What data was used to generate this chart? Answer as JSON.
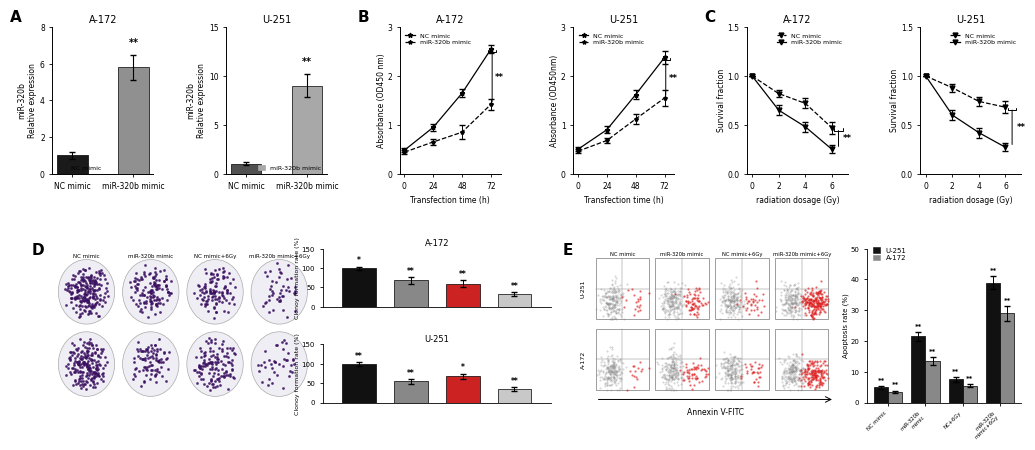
{
  "panel_A": {
    "title_left": "A-172",
    "title_right": "U-251",
    "ylabel": "miR-320b\nRelative expression",
    "categories": [
      "NC mimic",
      "miR-320b mimic"
    ],
    "A172_values": [
      1.0,
      5.8
    ],
    "A172_errors": [
      0.2,
      0.7
    ],
    "U251_values": [
      1.0,
      9.0
    ],
    "U251_errors": [
      0.15,
      1.2
    ],
    "bar_colors_A172": [
      "#1a1a1a",
      "#909090"
    ],
    "bar_colors_U251": [
      "#505050",
      "#A8A8A8"
    ],
    "ylim_A172": [
      0,
      8
    ],
    "ylim_U251": [
      0,
      15
    ],
    "yticks_A172": [
      0,
      2,
      4,
      6,
      8
    ],
    "yticks_U251": [
      0,
      5,
      10,
      15
    ],
    "legend_A172": [
      "NC mimic",
      "miR-320b mimic"
    ],
    "legend_U251": [
      "miR-320b mimic"
    ]
  },
  "panel_B": {
    "title_left": "A-172",
    "title_right": "U-251",
    "xlabel": "Transfection time (h)",
    "ylabel_left": "Absorbance (OD450 nm)",
    "ylabel_right": "Absorbance (OD450nm)",
    "x_values": [
      0,
      24,
      48,
      72
    ],
    "A172_NC": [
      0.48,
      0.95,
      1.65,
      2.55
    ],
    "A172_NC_err": [
      0.04,
      0.07,
      0.09,
      0.08
    ],
    "A172_mimic": [
      0.44,
      0.65,
      0.85,
      1.42
    ],
    "A172_mimic_err": [
      0.04,
      0.06,
      0.14,
      0.11
    ],
    "U251_NC": [
      0.5,
      0.9,
      1.62,
      2.38
    ],
    "U251_NC_err": [
      0.04,
      0.07,
      0.09,
      0.14
    ],
    "U251_mimic": [
      0.46,
      0.68,
      1.12,
      1.55
    ],
    "U251_mimic_err": [
      0.04,
      0.06,
      0.1,
      0.16
    ],
    "ylim": [
      0,
      3.0
    ],
    "yticks": [
      0,
      1.0,
      2.0,
      3.0
    ]
  },
  "panel_C": {
    "title_left": "A-172",
    "title_right": "U-251",
    "xlabel": "radiation dosage (Gy)",
    "ylabel": "Survival fraction",
    "x_values": [
      0,
      2,
      4,
      6
    ],
    "A172_NC": [
      1.0,
      0.82,
      0.72,
      0.47
    ],
    "A172_NC_err": [
      0.0,
      0.04,
      0.05,
      0.06
    ],
    "A172_mimic": [
      1.0,
      0.65,
      0.48,
      0.25
    ],
    "A172_mimic_err": [
      0.0,
      0.05,
      0.05,
      0.04
    ],
    "U251_NC": [
      1.0,
      0.88,
      0.74,
      0.68
    ],
    "U251_NC_err": [
      0.0,
      0.04,
      0.05,
      0.06
    ],
    "U251_mimic": [
      1.0,
      0.6,
      0.42,
      0.27
    ],
    "U251_mimic_err": [
      0.0,
      0.05,
      0.05,
      0.04
    ],
    "ylim": [
      0.0,
      1.5
    ],
    "yticks": [
      0.0,
      0.5,
      1.0,
      1.5
    ]
  },
  "panel_D": {
    "title_top": "A-172",
    "title_bottom": "U-251",
    "categories": [
      "NC mimic",
      "miR-320b mimic",
      "NC mimic+6Gy",
      "miR-320b mimic+6Gy"
    ],
    "ylabel": "Clonoy formation rate (%)",
    "A172_values": [
      100,
      68,
      60,
      33
    ],
    "A172_errors": [
      4,
      8,
      9,
      5
    ],
    "A172_sig": [
      "*",
      "**",
      "**",
      "**"
    ],
    "U251_values": [
      100,
      55,
      68,
      35
    ],
    "U251_errors": [
      5,
      6,
      7,
      5
    ],
    "U251_sig": [
      "**",
      "**",
      "*",
      "**"
    ],
    "bar_colors": [
      "#111111",
      "#888888",
      "#CC2222",
      "#C8C8C8"
    ],
    "ylim": [
      0,
      150
    ],
    "yticks": [
      0,
      50,
      100,
      150
    ]
  },
  "panel_E": {
    "ylabel": "Apoptosis rate (%)",
    "categories": [
      "NC mimic",
      "miR-320b\nmimic",
      "NC+6Gy",
      "miR-320b\nmimic+6Gy"
    ],
    "U251_values": [
      5.0,
      21.5,
      7.5,
      39.0
    ],
    "U251_errors": [
      0.5,
      1.5,
      0.8,
      2.0
    ],
    "A172_values": [
      3.5,
      13.5,
      5.5,
      29.0
    ],
    "A172_errors": [
      0.4,
      1.2,
      0.6,
      2.5
    ],
    "bar_color_U251": "#111111",
    "bar_color_A172": "#888888",
    "ylim": [
      0,
      50
    ],
    "yticks": [
      0,
      10,
      20,
      30,
      40,
      50
    ],
    "sig_U251": [
      "**",
      "**",
      "**",
      "**"
    ],
    "sig_A172": [
      "**",
      "**",
      "**",
      "**"
    ],
    "flow_labels_col": [
      "NC mimic",
      "miR-320b mimic",
      "NC mimic+6Gy",
      "miR-320b mimic+6Gy"
    ],
    "flow_labels_row": [
      "U-251",
      "A-172"
    ],
    "annexin_xlabel": "Annexin V-FITC"
  }
}
